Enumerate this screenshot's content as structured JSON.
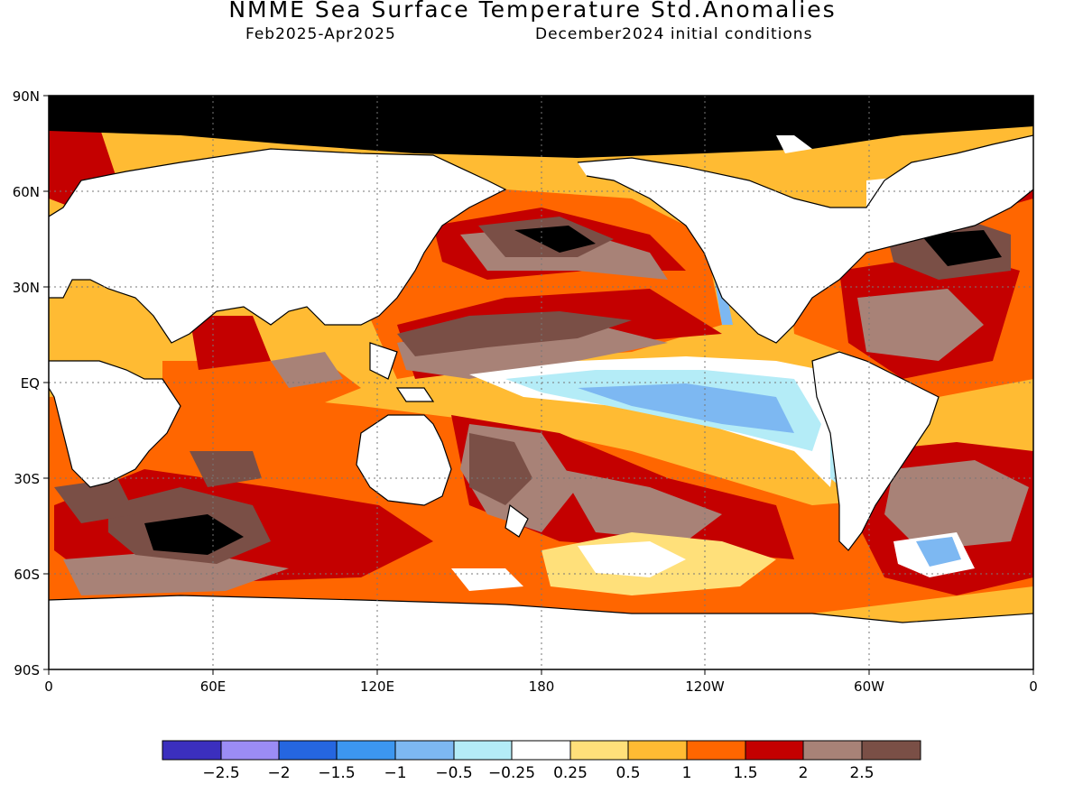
{
  "title": "NMME Sea Surface Temperature Std.Anomalies",
  "subtitle_period": "Feb2025-Apr2025",
  "subtitle_initial": "December2024 initial conditions",
  "map": {
    "lat_labels": [
      "90N",
      "60N",
      "30N",
      "EQ",
      "30S",
      "60S",
      "90S"
    ],
    "lon_labels": [
      "0",
      "60E",
      "120E",
      "180",
      "120W",
      "60W",
      "0"
    ],
    "grid": true
  },
  "colorbar": {
    "labels": [
      "-2.5",
      "-2",
      "-1.5",
      "-1",
      "-0.5",
      "-0.25",
      "0.25",
      "0.5",
      "1",
      "1.5",
      "2",
      "2.5"
    ],
    "colors": [
      "#3b2fbe",
      "#9b8cf5",
      "#2566e0",
      "#3c96f0",
      "#7db8f2",
      "#b4ecf7",
      "#ffffff",
      "#ffe07a",
      "#ffbb33",
      "#ff6600",
      "#c40000",
      "#a88277",
      "#7a4f46"
    ]
  },
  "colors": {
    "land": "#ffffff",
    "coastline": "#000000",
    "sea_ice": "#7a4f46"
  }
}
